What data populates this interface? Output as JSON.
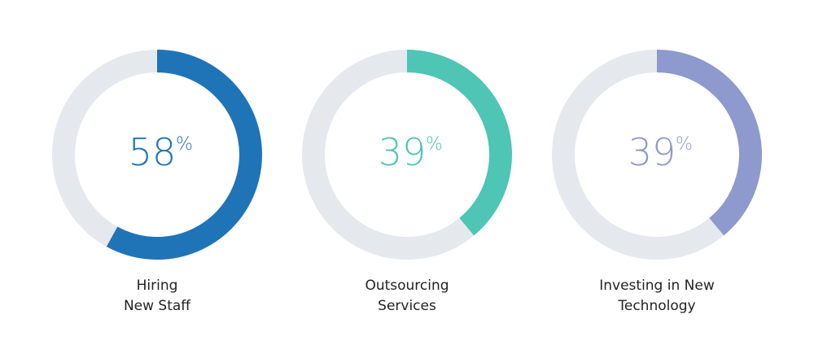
{
  "chart_data": {
    "type": "donut",
    "track_color": "#e5e9ee",
    "items": [
      {
        "label_lines": [
          "Hiring",
          "New Staff"
        ],
        "value": 58,
        "unit": "%",
        "color": "#1f74b8"
      },
      {
        "label_lines": [
          "Outsourcing",
          "Services"
        ],
        "value": 39,
        "unit": "%",
        "color": "#4ec5b5"
      },
      {
        "label_lines": [
          "Investing in New",
          "Technology"
        ],
        "value": 39,
        "unit": "%",
        "color": "#8e99cd"
      }
    ]
  }
}
